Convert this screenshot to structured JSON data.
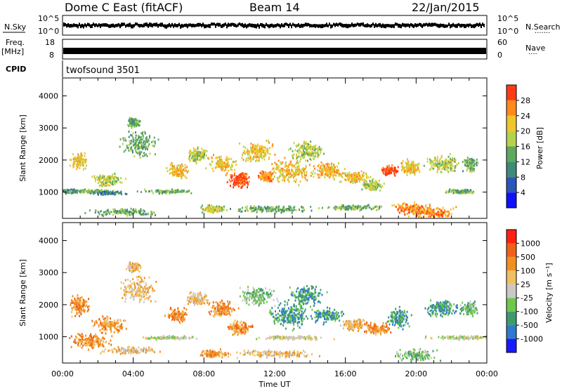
{
  "header": {
    "title": "Dome C East (fitACF)",
    "beam": "Beam 14",
    "date": "22/Jan/2015"
  },
  "top_panels": {
    "nsky_label": "N.Sky",
    "nsearch_label": "N.Search",
    "freq_label_line1": "Freq.",
    "freq_label_line2": "[MHz]",
    "nave_label": "Nave",
    "cpid_label": "CPID",
    "cpid_value": "twofsound 3501",
    "nsky_ticks": [
      "10^5",
      "10^0"
    ],
    "nsearch_ticks": [
      "10^5",
      "10^0"
    ],
    "freq_ticks": [
      "18",
      "8"
    ],
    "nave_ticks": [
      "60",
      "0"
    ]
  },
  "x_axis": {
    "label": "Time UT",
    "ticks": [
      "00:00",
      "04:00",
      "08:00",
      "12:00",
      "16:00",
      "20:00",
      "00:00"
    ]
  },
  "chart_data": [
    {
      "type": "heatmap",
      "name": "power",
      "ylabel": "Slant Range [km]",
      "yticks": [
        1000,
        2000,
        3000,
        4000
      ],
      "ylim": [
        180,
        4560
      ],
      "xlim_hours": [
        0,
        24
      ],
      "colorbar": {
        "label": "Power [dB]",
        "ticks": [
          "4",
          "8",
          "12",
          "16",
          "20",
          "24",
          "28"
        ],
        "colors": [
          "#1010ff",
          "#2d55b8",
          "#3f8a7a",
          "#5fa85f",
          "#b7d24a",
          "#f0c52a",
          "#ff8a1a",
          "#ff3b14"
        ]
      },
      "blobs": [
        {
          "t": 0.4,
          "r": 1050,
          "dt": 0.5,
          "dr": 80,
          "v": 2
        },
        {
          "t": 1.5,
          "r": 1050,
          "dt": 1.6,
          "dr": 70,
          "v": 3
        },
        {
          "t": 2.6,
          "r": 1000,
          "dt": 1.2,
          "dr": 70,
          "v": 2
        },
        {
          "t": 0.9,
          "r": 2000,
          "dt": 0.6,
          "dr": 300,
          "v": 5
        },
        {
          "t": 2.5,
          "r": 1400,
          "dt": 1.2,
          "dr": 250,
          "v": 4
        },
        {
          "t": 4.3,
          "r": 2500,
          "dt": 1.2,
          "dr": 500,
          "v": 3
        },
        {
          "t": 4.0,
          "r": 3200,
          "dt": 0.5,
          "dr": 200,
          "v": 3
        },
        {
          "t": 6.5,
          "r": 1700,
          "dt": 0.8,
          "dr": 300,
          "v": 5
        },
        {
          "t": 6.0,
          "r": 1050,
          "dt": 2.0,
          "dr": 80,
          "v": 3
        },
        {
          "t": 7.6,
          "r": 2200,
          "dt": 0.8,
          "dr": 300,
          "v": 4
        },
        {
          "t": 9.0,
          "r": 1900,
          "dt": 1.0,
          "dr": 350,
          "v": 5
        },
        {
          "t": 10.0,
          "r": 1400,
          "dt": 0.9,
          "dr": 300,
          "v": 7
        },
        {
          "t": 11.0,
          "r": 2300,
          "dt": 1.2,
          "dr": 400,
          "v": 5
        },
        {
          "t": 11.5,
          "r": 1500,
          "dt": 0.6,
          "dr": 250,
          "v": 6
        },
        {
          "t": 12.8,
          "r": 1700,
          "dt": 1.5,
          "dr": 500,
          "v": 5
        },
        {
          "t": 13.8,
          "r": 2300,
          "dt": 1.2,
          "dr": 400,
          "v": 4
        },
        {
          "t": 15.0,
          "r": 1700,
          "dt": 1.2,
          "dr": 300,
          "v": 5
        },
        {
          "t": 16.5,
          "r": 1500,
          "dt": 1.0,
          "dr": 250,
          "v": 5
        },
        {
          "t": 17.5,
          "r": 1250,
          "dt": 0.8,
          "dr": 250,
          "v": 4
        },
        {
          "t": 18.5,
          "r": 1700,
          "dt": 0.6,
          "dr": 200,
          "v": 7
        },
        {
          "t": 19.6,
          "r": 1800,
          "dt": 0.8,
          "dr": 300,
          "v": 5
        },
        {
          "t": 19.8,
          "r": 500,
          "dt": 1.5,
          "dr": 250,
          "v": 6
        },
        {
          "t": 21.0,
          "r": 400,
          "dt": 1.5,
          "dr": 200,
          "v": 6
        },
        {
          "t": 21.5,
          "r": 1900,
          "dt": 1.2,
          "dr": 350,
          "v": 4
        },
        {
          "t": 22.5,
          "r": 1050,
          "dt": 1.2,
          "dr": 80,
          "v": 3
        },
        {
          "t": 23.0,
          "r": 1900,
          "dt": 0.6,
          "dr": 300,
          "v": 3
        },
        {
          "t": 12.0,
          "r": 500,
          "dt": 3.0,
          "dr": 150,
          "v": 3
        },
        {
          "t": 3.5,
          "r": 400,
          "dt": 2.5,
          "dr": 150,
          "v": 3
        },
        {
          "t": 8.5,
          "r": 500,
          "dt": 1.0,
          "dr": 150,
          "v": 4
        },
        {
          "t": 16.5,
          "r": 550,
          "dt": 2.0,
          "dr": 120,
          "v": 3
        }
      ]
    },
    {
      "type": "heatmap",
      "name": "velocity",
      "ylabel": "Slant Range [km]",
      "yticks": [
        1000,
        2000,
        3000,
        4000
      ],
      "ylim": [
        180,
        4560
      ],
      "xlim_hours": [
        0,
        24
      ],
      "colorbar": {
        "label": "Velocity [m s⁻¹]",
        "ticks": [
          "1000",
          "500",
          "100",
          "25",
          "-25",
          "-100",
          "-500",
          "-1000"
        ],
        "colors": [
          "#1a1aff",
          "#2d7ad0",
          "#3f9a70",
          "#6ec84a",
          "#c8c8c8",
          "#f0c060",
          "#f0901e",
          "#f0601a",
          "#ff2010"
        ]
      },
      "blobs": [
        {
          "t": 0.9,
          "r": 2000,
          "dt": 0.8,
          "dr": 400,
          "v": 6
        },
        {
          "t": 1.5,
          "r": 900,
          "dt": 1.5,
          "dr": 300,
          "v": 6
        },
        {
          "t": 2.6,
          "r": 1400,
          "dt": 1.2,
          "dr": 300,
          "v": 6
        },
        {
          "t": 3.8,
          "r": 600,
          "dt": 2.0,
          "dr": 150,
          "v": 5
        },
        {
          "t": 4.3,
          "r": 2500,
          "dt": 1.2,
          "dr": 500,
          "v": 5
        },
        {
          "t": 4.0,
          "r": 3200,
          "dt": 0.5,
          "dr": 200,
          "v": 5
        },
        {
          "t": 6.5,
          "r": 1700,
          "dt": 0.8,
          "dr": 300,
          "v": 6
        },
        {
          "t": 7.6,
          "r": 2200,
          "dt": 0.8,
          "dr": 300,
          "v": 5
        },
        {
          "t": 9.0,
          "r": 1900,
          "dt": 1.0,
          "dr": 350,
          "v": 6
        },
        {
          "t": 10.0,
          "r": 1300,
          "dt": 0.9,
          "dr": 300,
          "v": 6
        },
        {
          "t": 11.0,
          "r": 2300,
          "dt": 1.2,
          "dr": 400,
          "v": 3
        },
        {
          "t": 12.8,
          "r": 1700,
          "dt": 1.5,
          "dr": 500,
          "v": 2
        },
        {
          "t": 13.8,
          "r": 2300,
          "dt": 1.2,
          "dr": 400,
          "v": 2
        },
        {
          "t": 15.0,
          "r": 1700,
          "dt": 1.2,
          "dr": 300,
          "v": 2
        },
        {
          "t": 16.5,
          "r": 1400,
          "dt": 1.0,
          "dr": 250,
          "v": 5
        },
        {
          "t": 17.8,
          "r": 1300,
          "dt": 1.0,
          "dr": 250,
          "v": 6
        },
        {
          "t": 19.0,
          "r": 1600,
          "dt": 0.8,
          "dr": 400,
          "v": 2
        },
        {
          "t": 20.0,
          "r": 450,
          "dt": 1.5,
          "dr": 250,
          "v": 3
        },
        {
          "t": 21.5,
          "r": 1900,
          "dt": 1.2,
          "dr": 350,
          "v": 2
        },
        {
          "t": 22.5,
          "r": 1000,
          "dt": 2.5,
          "dr": 80,
          "v": 4
        },
        {
          "t": 13.0,
          "r": 1000,
          "dt": 2.5,
          "dr": 80,
          "v": 4
        },
        {
          "t": 6.0,
          "r": 1000,
          "dt": 2.0,
          "dr": 80,
          "v": 4
        },
        {
          "t": 23.0,
          "r": 1900,
          "dt": 0.6,
          "dr": 300,
          "v": 3
        },
        {
          "t": 12.0,
          "r": 500,
          "dt": 3.0,
          "dr": 150,
          "v": 5
        },
        {
          "t": 8.5,
          "r": 500,
          "dt": 1.0,
          "dr": 150,
          "v": 6
        }
      ]
    }
  ]
}
